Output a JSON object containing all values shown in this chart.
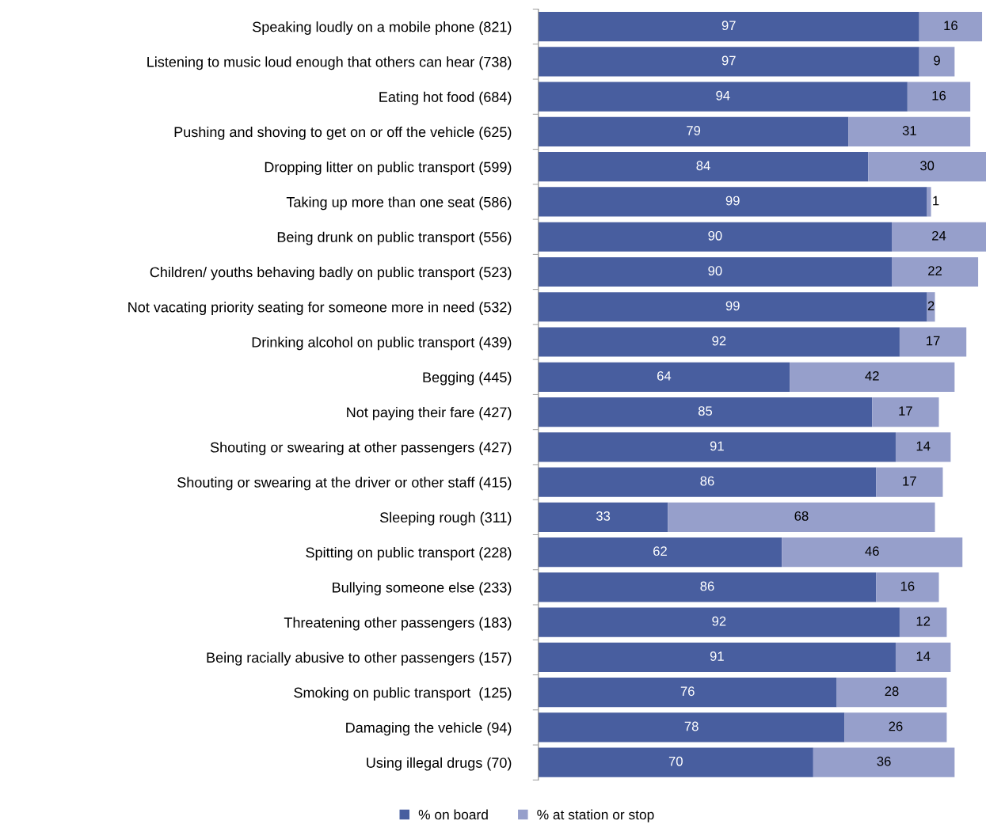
{
  "chart_data": {
    "type": "bar",
    "orientation": "horizontal",
    "stacked": true,
    "data_labels": true,
    "legend": "bottom",
    "grid": false,
    "categories": [
      "Speaking loudly on a mobile phone (821)",
      "Listening to music loud enough that others can hear (738)",
      "Eating hot food (684)",
      "Pushing and shoving to get on or off the vehicle (625)",
      "Dropping litter on public transport (599)",
      "Taking up more than one seat (586)",
      "Being drunk on public transport (556)",
      "Children/ youths behaving badly on public transport (523)",
      "Not vacating priority seating for someone more in need (532)",
      "Drinking alcohol on public transport (439)",
      "Begging (445)",
      "Not paying their fare (427)",
      "Shouting or swearing at other passengers (427)",
      "Shouting or swearing at the driver or other staff (415)",
      "Sleeping rough (311)",
      "Spitting on public transport (228)",
      "Bullying someone else (233)",
      "Threatening other passengers (183)",
      "Being racially abusive to other passengers (157)",
      "Smoking on public transport  (125)",
      "Damaging the vehicle (94)",
      "Using illegal drugs (70)"
    ],
    "series": [
      {
        "name": "% on board",
        "color": "#485e9f",
        "values": [
          97,
          97,
          94,
          79,
          84,
          99,
          90,
          90,
          99,
          92,
          64,
          85,
          91,
          86,
          33,
          62,
          86,
          92,
          91,
          76,
          78,
          70
        ]
      },
      {
        "name": "% at station or stop",
        "color": "#969fcb",
        "values": [
          16,
          9,
          16,
          31,
          30,
          1,
          24,
          22,
          2,
          17,
          42,
          17,
          14,
          17,
          68,
          46,
          16,
          12,
          14,
          28,
          26,
          36
        ]
      }
    ]
  }
}
